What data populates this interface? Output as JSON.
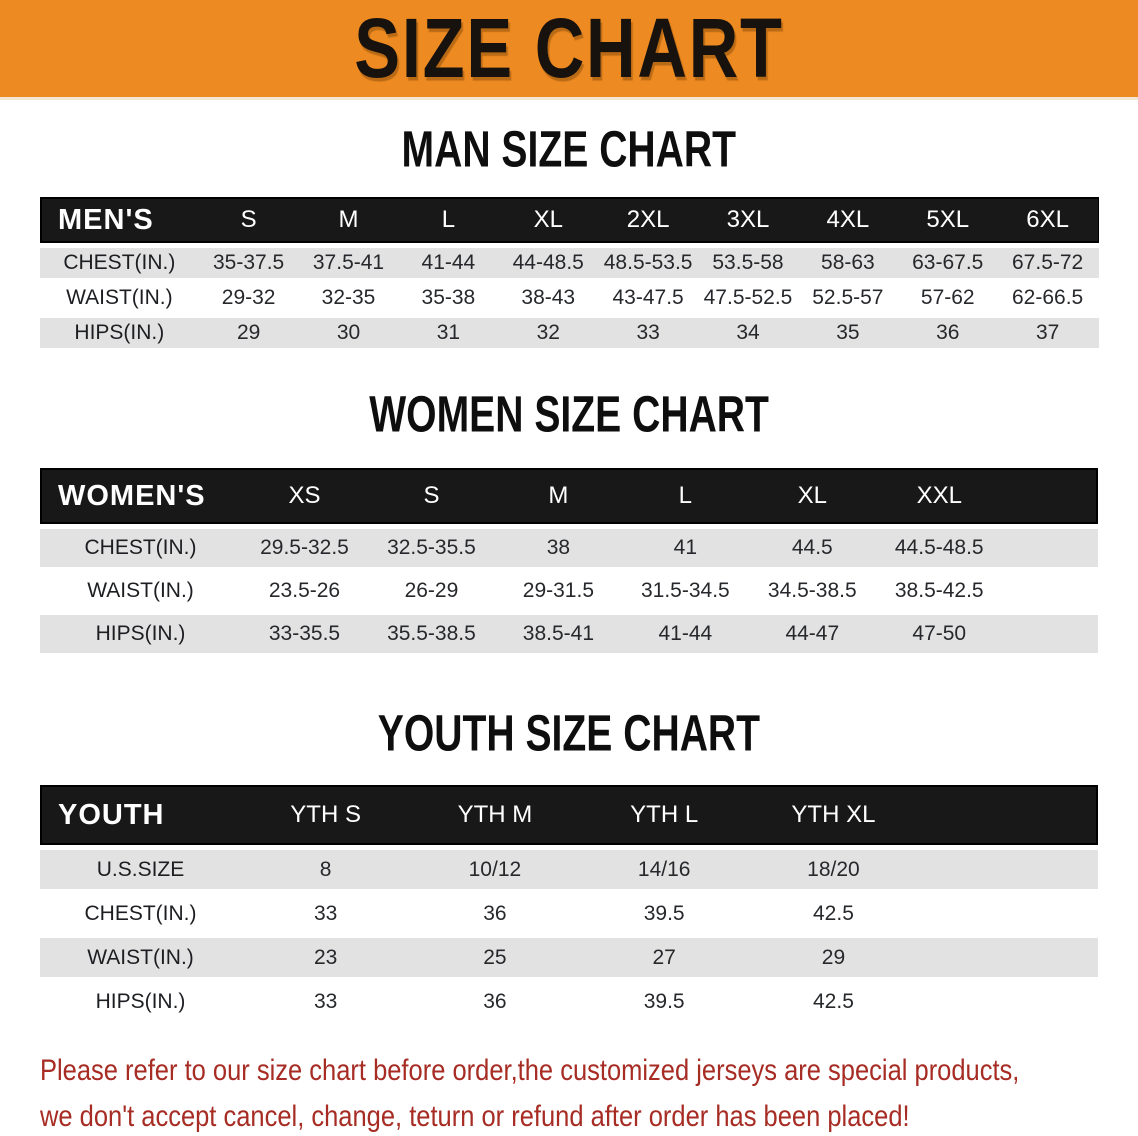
{
  "banner": {
    "title": "SIZE CHART"
  },
  "sections": [
    {
      "heading": "MAN SIZE CHART",
      "table": {
        "header_label": "MEN'S",
        "columns": [
          "S",
          "M",
          "L",
          "XL",
          "2XL",
          "3XL",
          "4XL",
          "5XL",
          "6XL"
        ],
        "rows": [
          {
            "label": "CHEST(IN.)",
            "values": [
              "35-37.5",
              "37.5-41",
              "41-44",
              "44-48.5",
              "48.5-53.5",
              "53.5-58",
              "58-63",
              "63-67.5",
              "67.5-72"
            ]
          },
          {
            "label": "WAIST(IN.)",
            "values": [
              "29-32",
              "32-35",
              "35-38",
              "38-43",
              "43-47.5",
              "47.5-52.5",
              "52.5-57",
              "57-62",
              "62-66.5"
            ]
          },
          {
            "label": "HIPS(IN.)",
            "values": [
              "29",
              "30",
              "31",
              "32",
              "33",
              "34",
              "35",
              "36",
              "37"
            ]
          }
        ]
      }
    },
    {
      "heading": "WOMEN SIZE CHART",
      "table": {
        "header_label": "WOMEN'S",
        "columns": [
          "XS",
          "S",
          "M",
          "L",
          "XL",
          "XXL"
        ],
        "rows": [
          {
            "label": "CHEST(IN.)",
            "values": [
              "29.5-32.5",
              "32.5-35.5",
              "38",
              "41",
              "44.5",
              "44.5-48.5"
            ]
          },
          {
            "label": "WAIST(IN.)",
            "values": [
              "23.5-26",
              "26-29",
              "29-31.5",
              "31.5-34.5",
              "34.5-38.5",
              "38.5-42.5"
            ]
          },
          {
            "label": "HIPS(IN.)",
            "values": [
              "33-35.5",
              "35.5-38.5",
              "38.5-41",
              "41-44",
              "44-47",
              "47-50"
            ]
          }
        ]
      }
    },
    {
      "heading": "YOUTH SIZE CHART",
      "table": {
        "header_label": "YOUTH",
        "columns": [
          "YTH S",
          "YTH M",
          "YTH L",
          "YTH XL"
        ],
        "rows": [
          {
            "label": "U.S.SIZE",
            "values": [
              "8",
              "10/12",
              "14/16",
              "18/20"
            ]
          },
          {
            "label": "CHEST(IN.)",
            "values": [
              "33",
              "36",
              "39.5",
              "42.5"
            ]
          },
          {
            "label": "WAIST(IN.)",
            "values": [
              "23",
              "25",
              "27",
              "29"
            ]
          },
          {
            "label": "HIPS(IN.)",
            "values": [
              "33",
              "36",
              "39.5",
              "42.5"
            ]
          }
        ]
      }
    }
  ],
  "footer": {
    "line1": "Please refer to our size chart before order,the customized jerseys are special products,",
    "line2": "we don't accept cancel, change, teturn or refund after order has been placed!"
  },
  "colors": {
    "banner_bg": "#ED8A21",
    "header_bar": "#181818",
    "row_shade": "#e2e2e2",
    "note_red": "#a72c24"
  }
}
